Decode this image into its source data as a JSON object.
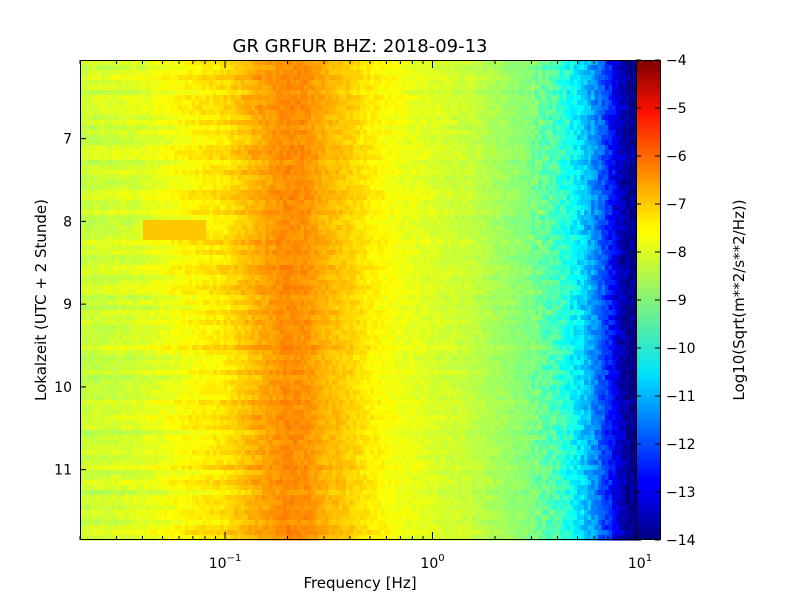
{
  "chart_data": {
    "type": "heatmap",
    "title": "GR GRFUR BHZ: 2018-09-13",
    "xlabel": "Frequency [Hz]",
    "ylabel": "Lokalzeit (UTC + 2 Stunde)",
    "colorbar_label": "Log10(Sqrt(m**2/s**2/Hz))",
    "x_scale": "log",
    "xlim": [
      0.02,
      10
    ],
    "x_ticks": [
      {
        "value": 0.1,
        "base": "10",
        "exp": "−1"
      },
      {
        "value": 1,
        "base": "10",
        "exp": "0"
      },
      {
        "value": 10,
        "base": "10",
        "exp": "1"
      }
    ],
    "ylim": [
      11.85,
      6.05
    ],
    "y_ticks": [
      7,
      8,
      9,
      10,
      11
    ],
    "y_tick_labels": [
      "7",
      "8",
      "9",
      "10",
      "11"
    ],
    "colorbar_range": [
      -14,
      -4
    ],
    "colorbar_ticks": [
      -4,
      -5,
      -6,
      -7,
      -8,
      -9,
      -10,
      -11,
      -12,
      -13,
      -14
    ],
    "colorbar_tick_labels": [
      "−4",
      "−5",
      "−6",
      "−7",
      "−8",
      "−9",
      "−10",
      "−11",
      "−12",
      "−13",
      "−14"
    ],
    "colormap": "jet",
    "spectrum_profile": {
      "freq_hz": [
        0.02,
        0.04,
        0.06,
        0.08,
        0.1,
        0.12,
        0.15,
        0.2,
        0.25,
        0.3,
        0.4,
        0.5,
        0.7,
        1.0,
        1.5,
        2.0,
        3.0,
        4.0,
        5.0,
        6.0,
        7.0,
        8.0,
        9.0,
        10.0
      ],
      "log10_amplitude": [
        -8.3,
        -8.1,
        -7.8,
        -7.6,
        -7.5,
        -7.2,
        -6.9,
        -6.6,
        -6.7,
        -7.0,
        -7.3,
        -7.6,
        -7.9,
        -8.1,
        -8.3,
        -8.6,
        -9.0,
        -9.6,
        -10.4,
        -11.3,
        -12.3,
        -13.3,
        -13.9,
        -14.0
      ]
    },
    "anomaly": {
      "time": 8.1,
      "freq_range": [
        0.04,
        0.08
      ],
      "log10_amplitude": -7.2
    }
  }
}
